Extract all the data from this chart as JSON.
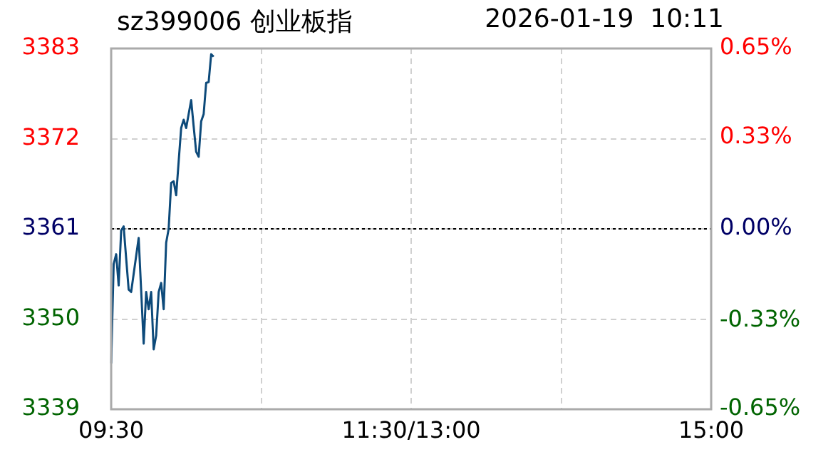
{
  "chart_data": {
    "type": "line",
    "title": "sz399006 创业板指",
    "subtitle": "2026-01-19  10:11",
    "categories": [
      "09:30",
      null,
      null,
      null,
      null,
      null,
      null,
      null,
      null,
      null,
      null,
      null,
      null,
      null,
      null,
      null,
      null,
      null,
      null,
      null,
      null,
      null,
      null,
      null,
      null,
      null,
      null,
      null,
      null,
      null,
      null,
      null,
      null,
      null,
      null,
      null,
      null,
      null,
      null,
      null,
      null,
      null,
      null,
      null,
      null,
      null,
      null,
      null,
      null,
      null,
      null,
      null,
      null,
      null,
      null,
      null,
      null,
      null,
      null,
      null,
      null,
      null,
      null,
      null,
      null,
      null,
      null,
      null,
      null,
      null,
      null,
      null,
      null,
      null,
      null,
      null,
      null,
      null,
      null,
      null,
      null,
      null,
      null,
      null,
      null,
      null,
      null,
      null,
      null,
      null,
      null,
      null,
      null,
      null,
      null,
      null,
      null,
      null,
      null,
      null,
      null,
      null,
      null,
      null,
      null,
      null,
      null,
      null,
      null,
      null,
      null,
      null,
      null,
      null,
      null,
      null,
      null,
      null,
      null,
      null,
      "11:30/13:00",
      null,
      null,
      null,
      null,
      null,
      null,
      null,
      null,
      null,
      null,
      null,
      null,
      null,
      null,
      null,
      null,
      null,
      null,
      null,
      null,
      null,
      null,
      null,
      null,
      null,
      null,
      null,
      null,
      null,
      null,
      null,
      null,
      null,
      null,
      null,
      null,
      null,
      null,
      null,
      null,
      null,
      null,
      null,
      null,
      null,
      null,
      null,
      null,
      null,
      null,
      null,
      null,
      null,
      null,
      null,
      null,
      null,
      null,
      null,
      null,
      null,
      null,
      null,
      null,
      null,
      null,
      null,
      null,
      null,
      null,
      null,
      null,
      null,
      null,
      null,
      null,
      null,
      null,
      null,
      null,
      null,
      null,
      null,
      null,
      null,
      null,
      null,
      null,
      null,
      null,
      null,
      null,
      null,
      null,
      null,
      null,
      null,
      null,
      null,
      null,
      null,
      null,
      null,
      null,
      null,
      null,
      null,
      null,
      null,
      null,
      null,
      null,
      null,
      null,
      null,
      null,
      null,
      null,
      null,
      "15:00"
    ],
    "series": [
      {
        "color": "#0d4a7a",
        "values": [
          3344.6,
          3356.7,
          3357.9,
          3354.1,
          3360.8,
          3361.3,
          3357.4,
          3353.6,
          3353.3,
          3355.5,
          3357.7,
          3359.9,
          3353.5,
          3347.0,
          3353.3,
          3351.2,
          3353.3,
          3346.3,
          3348.0,
          3353.3,
          3354.4,
          3351.2,
          3359.3,
          3361.0,
          3366.6,
          3366.8,
          3365.1,
          3369.2,
          3373.3,
          3374.3,
          3373.3,
          3375.0,
          3376.7,
          3373.5,
          3370.4,
          3369.8,
          3374.1,
          3375.0,
          3378.8,
          3378.9,
          3382.3,
          3382.0,
          null,
          null,
          null,
          null,
          null,
          null,
          null,
          null,
          null,
          null,
          null,
          null,
          null,
          null,
          null,
          null,
          null,
          null,
          null,
          null,
          null,
          null,
          null,
          null,
          null,
          null,
          null,
          null,
          null,
          null,
          null,
          null,
          null,
          null,
          null,
          null,
          null,
          null,
          null,
          null,
          null,
          null,
          null,
          null,
          null,
          null,
          null,
          null,
          null,
          null,
          null,
          null,
          null,
          null,
          null,
          null,
          null,
          null,
          null,
          null,
          null,
          null,
          null,
          null,
          null,
          null,
          null,
          null,
          null,
          null,
          null,
          null,
          null,
          null,
          null,
          null,
          null,
          null,
          null,
          null,
          null,
          null,
          null,
          null,
          null,
          null,
          null,
          null,
          null,
          null,
          null,
          null,
          null,
          null,
          null,
          null,
          null,
          null,
          null,
          null,
          null,
          null,
          null,
          null,
          null,
          null,
          null,
          null,
          null,
          null,
          null,
          null,
          null,
          null,
          null,
          null,
          null,
          null,
          null,
          null,
          null,
          null,
          null,
          null,
          null,
          null,
          null,
          null,
          null,
          null,
          null,
          null,
          null,
          null,
          null,
          null,
          null,
          null,
          null,
          null,
          null,
          null,
          null,
          null,
          null,
          null,
          null,
          null,
          null,
          null,
          null,
          null,
          null,
          null,
          null,
          null,
          null,
          null,
          null,
          null,
          null,
          null,
          null,
          null,
          null,
          null,
          null,
          null,
          null,
          null,
          null,
          null,
          null,
          null,
          null,
          null,
          null,
          null,
          null,
          null,
          null,
          null,
          null,
          null,
          null,
          null,
          null,
          null,
          null,
          null,
          null,
          null,
          null,
          null,
          null,
          null,
          null,
          null,
          null
        ]
      }
    ],
    "ylim": [
      3339,
      3383
    ],
    "yticks": [
      3339,
      3350,
      3361,
      3372,
      3383
    ],
    "y2lim": [
      -0.65,
      0.65
    ],
    "y2ticks": [
      {
        "value": -0.65,
        "label": "-0.65%"
      },
      {
        "value": -0.33,
        "label": "-0.33%"
      },
      {
        "value": 0,
        "label": "0.00%"
      },
      {
        "value": 0.33,
        "label": "0.33%"
      },
      {
        "value": 0.65,
        "label": "0.65%"
      }
    ],
    "ref_lines": [
      {
        "axis": "y",
        "value": 3361,
        "color": "#000000",
        "line_style": "dotted"
      }
    ],
    "grid": true,
    "legend": false,
    "marker": "none",
    "line_style": "solid"
  }
}
